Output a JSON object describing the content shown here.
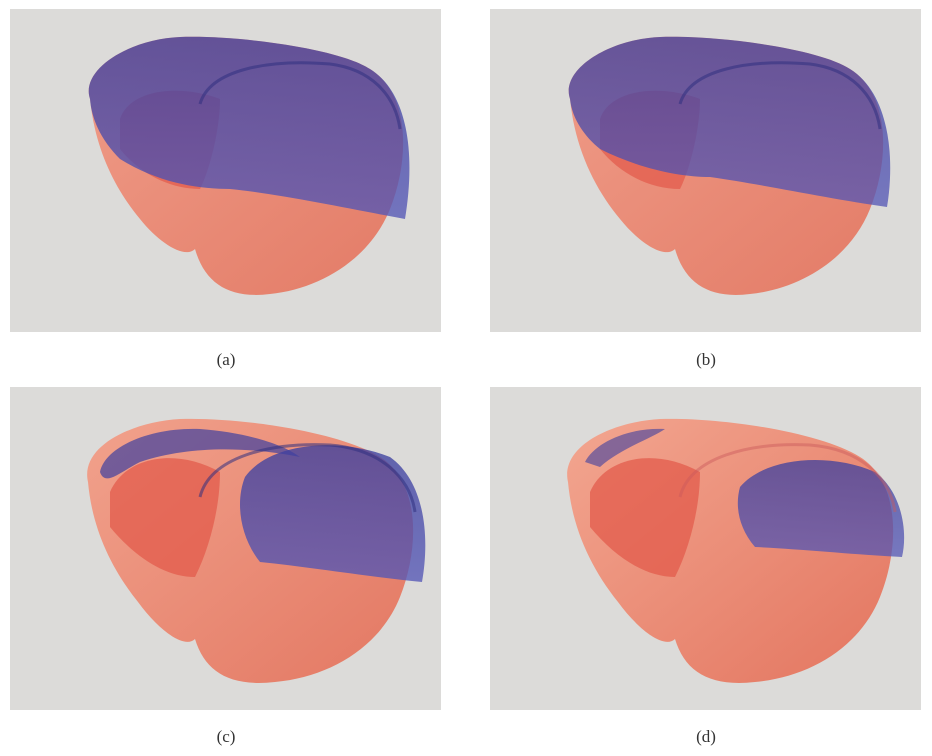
{
  "figure": {
    "panels": [
      {
        "id": "a",
        "caption": "(a)",
        "red_level": 0.35
      },
      {
        "id": "b",
        "caption": "(b)",
        "red_level": 0.45
      },
      {
        "id": "c",
        "caption": "(c)",
        "red_level": 0.6
      },
      {
        "id": "d",
        "caption": "(d)",
        "red_level": 0.78
      }
    ],
    "colors": {
      "background": "#dcdbd9",
      "myocardium_red": "#ee7b63",
      "myocardium_blue": "#4548a8",
      "caption_text": "#333333"
    }
  }
}
